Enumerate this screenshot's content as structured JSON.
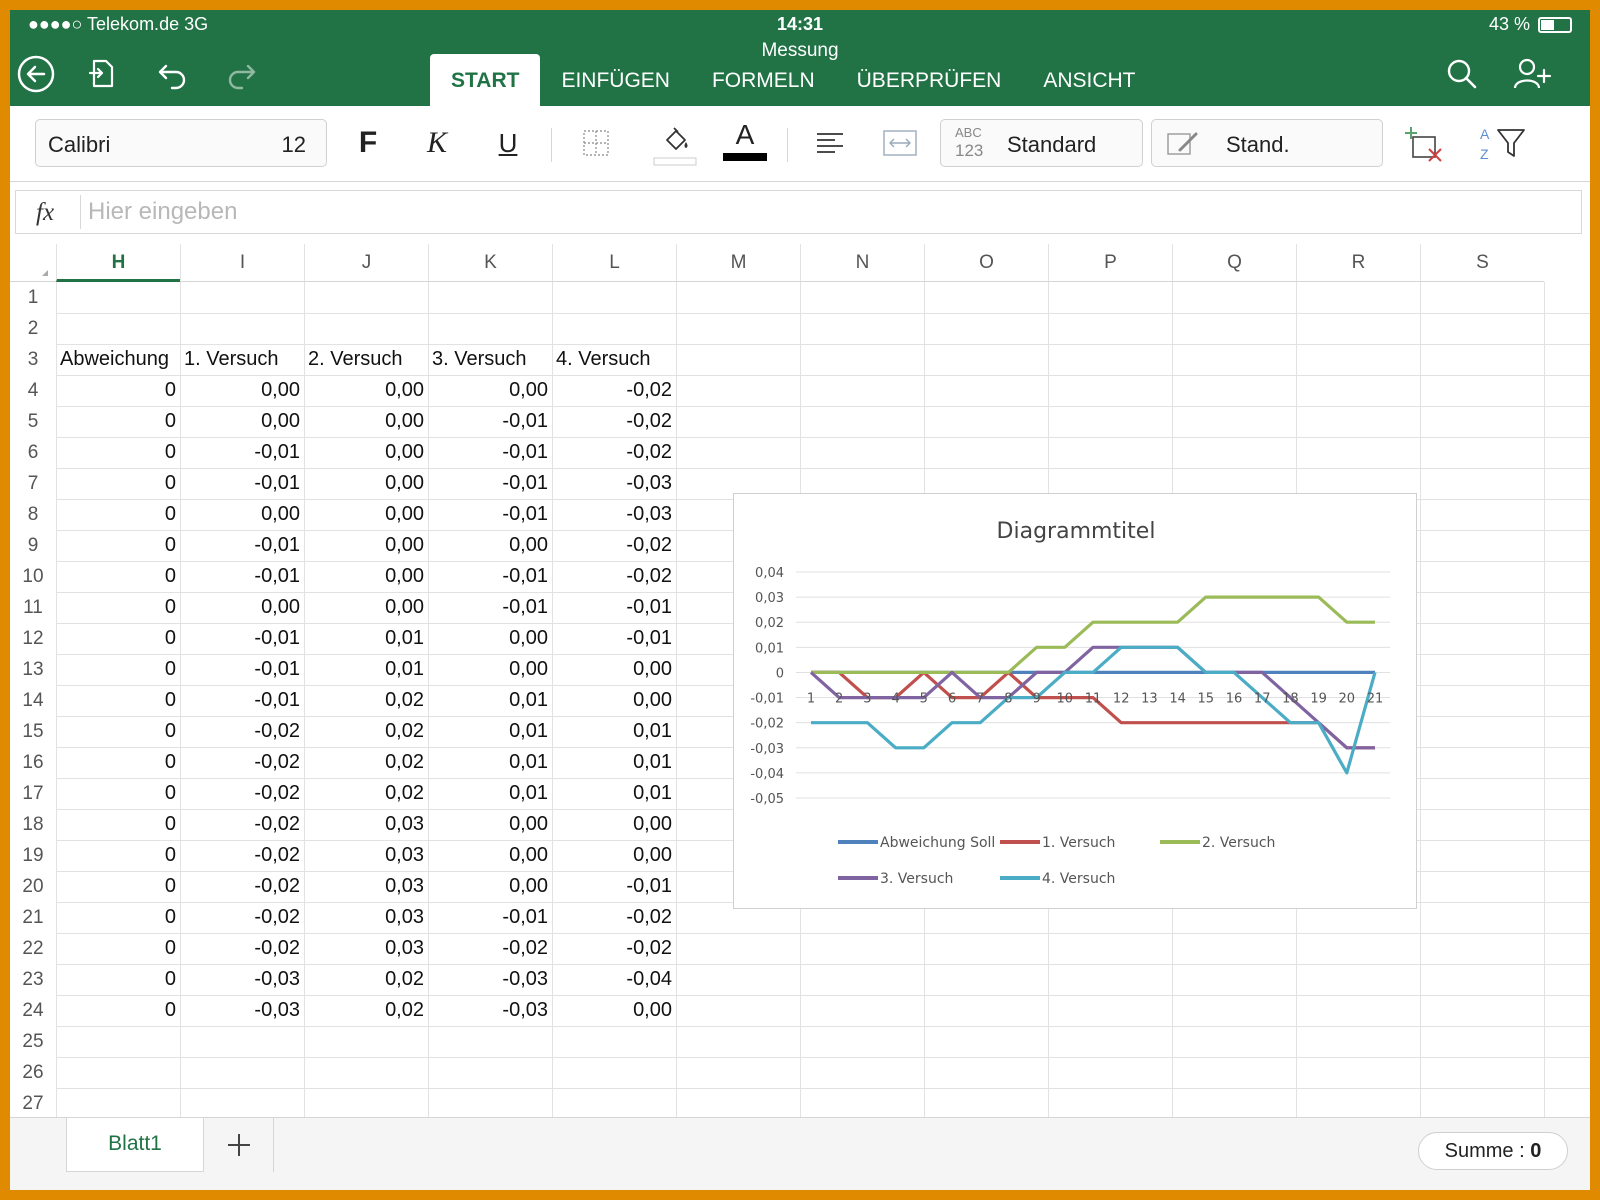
{
  "status": {
    "carrier": "●●●●○ Telekom.de  3G",
    "time": "14:31",
    "battery": "43 %"
  },
  "document_title": "Messung",
  "tabs": [
    {
      "label": "START",
      "active": true
    },
    {
      "label": "EINFÜGEN"
    },
    {
      "label": "FORMELN"
    },
    {
      "label": "ÜBERPRÜFEN"
    },
    {
      "label": "ANSICHT"
    }
  ],
  "ribbon": {
    "font_name": "Calibri",
    "font_size": "12",
    "bold": "F",
    "italic": "K",
    "underline": "U",
    "font_color_letter": "A",
    "number_format_icon_top": "ABC",
    "number_format_icon_bottom": "123",
    "number_format": "Standard",
    "cell_style": "Stand.",
    "sort_a": "A",
    "sort_z": "Z"
  },
  "formula_bar": {
    "fx": "fx",
    "placeholder": "Hier eingeben"
  },
  "columns": [
    "H",
    "I",
    "J",
    "K",
    "L",
    "M",
    "N",
    "O",
    "P",
    "Q",
    "R",
    "S"
  ],
  "selected_column": "H",
  "rows": [
    "1",
    "2",
    "3",
    "4",
    "5",
    "6",
    "7",
    "8",
    "9",
    "10",
    "11",
    "12",
    "13",
    "14",
    "15",
    "16",
    "17",
    "18",
    "19",
    "20",
    "21",
    "22",
    "23",
    "24",
    "25",
    "26",
    "27"
  ],
  "table": {
    "headers": [
      "Abweichung",
      "1. Versuch",
      "2. Versuch",
      "3. Versuch",
      "4. Versuch"
    ],
    "rows": [
      [
        "0",
        "0,00",
        "0,00",
        "0,00",
        "-0,02"
      ],
      [
        "0",
        "0,00",
        "0,00",
        "-0,01",
        "-0,02"
      ],
      [
        "0",
        "-0,01",
        "0,00",
        "-0,01",
        "-0,02"
      ],
      [
        "0",
        "-0,01",
        "0,00",
        "-0,01",
        "-0,03"
      ],
      [
        "0",
        "0,00",
        "0,00",
        "-0,01",
        "-0,03"
      ],
      [
        "0",
        "-0,01",
        "0,00",
        "0,00",
        "-0,02"
      ],
      [
        "0",
        "-0,01",
        "0,00",
        "-0,01",
        "-0,02"
      ],
      [
        "0",
        "0,00",
        "0,00",
        "-0,01",
        "-0,01"
      ],
      [
        "0",
        "-0,01",
        "0,01",
        "0,00",
        "-0,01"
      ],
      [
        "0",
        "-0,01",
        "0,01",
        "0,00",
        "0,00"
      ],
      [
        "0",
        "-0,01",
        "0,02",
        "0,01",
        "0,00"
      ],
      [
        "0",
        "-0,02",
        "0,02",
        "0,01",
        "0,01"
      ],
      [
        "0",
        "-0,02",
        "0,02",
        "0,01",
        "0,01"
      ],
      [
        "0",
        "-0,02",
        "0,02",
        "0,01",
        "0,01"
      ],
      [
        "0",
        "-0,02",
        "0,03",
        "0,00",
        "0,00"
      ],
      [
        "0",
        "-0,02",
        "0,03",
        "0,00",
        "0,00"
      ],
      [
        "0",
        "-0,02",
        "0,03",
        "0,00",
        "-0,01"
      ],
      [
        "0",
        "-0,02",
        "0,03",
        "-0,01",
        "-0,02"
      ],
      [
        "0",
        "-0,02",
        "0,03",
        "-0,02",
        "-0,02"
      ],
      [
        "0",
        "-0,03",
        "0,02",
        "-0,03",
        "-0,04"
      ],
      [
        "0",
        "-0,03",
        "0,02",
        "-0,03",
        "0,00"
      ]
    ]
  },
  "chart_data": {
    "type": "line",
    "title": "Diagrammtitel",
    "categories": [
      "1",
      "2",
      "3",
      "4",
      "5",
      "6",
      "7",
      "8",
      "9",
      "10",
      "11",
      "12",
      "13",
      "14",
      "15",
      "16",
      "17",
      "18",
      "19",
      "20",
      "21"
    ],
    "ylim": [
      -0.05,
      0.04
    ],
    "yticks": [
      0.04,
      0.03,
      0.02,
      0.01,
      0,
      -0.01,
      -0.02,
      -0.03,
      -0.04,
      -0.05
    ],
    "ytick_labels": [
      "0,04",
      "0,03",
      "0,02",
      "0,01",
      "0",
      "-0,01",
      "-0,02",
      "-0,03",
      "-0,04",
      "-0,05"
    ],
    "grid": true,
    "legend_position": "bottom",
    "series": [
      {
        "name": "Abweichung Soll",
        "color": "#4f81bd",
        "values": [
          0,
          0,
          0,
          0,
          0,
          0,
          0,
          0,
          0,
          0,
          0,
          0,
          0,
          0,
          0,
          0,
          0,
          0,
          0,
          0,
          0
        ]
      },
      {
        "name": "1. Versuch",
        "color": "#c0504d",
        "values": [
          0,
          0,
          -0.01,
          -0.01,
          0,
          -0.01,
          -0.01,
          0,
          -0.01,
          -0.01,
          -0.01,
          -0.02,
          -0.02,
          -0.02,
          -0.02,
          -0.02,
          -0.02,
          -0.02,
          -0.02,
          -0.03,
          -0.03
        ]
      },
      {
        "name": "2. Versuch",
        "color": "#9bbb59",
        "values": [
          0,
          0,
          0,
          0,
          0,
          0,
          0,
          0,
          0.01,
          0.01,
          0.02,
          0.02,
          0.02,
          0.02,
          0.03,
          0.03,
          0.03,
          0.03,
          0.03,
          0.02,
          0.02
        ]
      },
      {
        "name": "3. Versuch",
        "color": "#8064a2",
        "values": [
          0,
          -0.01,
          -0.01,
          -0.01,
          -0.01,
          0,
          -0.01,
          -0.01,
          0,
          0,
          0.01,
          0.01,
          0.01,
          0.01,
          0,
          0,
          0,
          -0.01,
          -0.02,
          -0.03,
          -0.03
        ]
      },
      {
        "name": "4. Versuch",
        "color": "#4bacc6",
        "values": [
          -0.02,
          -0.02,
          -0.02,
          -0.03,
          -0.03,
          -0.02,
          -0.02,
          -0.01,
          -0.01,
          0,
          0,
          0.01,
          0.01,
          0.01,
          0,
          0,
          -0.01,
          -0.02,
          -0.02,
          -0.04,
          0
        ]
      }
    ]
  },
  "sheets": [
    {
      "name": "Blatt1",
      "active": true
    }
  ],
  "status_sum": {
    "label": "Summe : ",
    "value": "0"
  },
  "colors": {
    "accent": "#217346",
    "frame": "#e08a00"
  }
}
